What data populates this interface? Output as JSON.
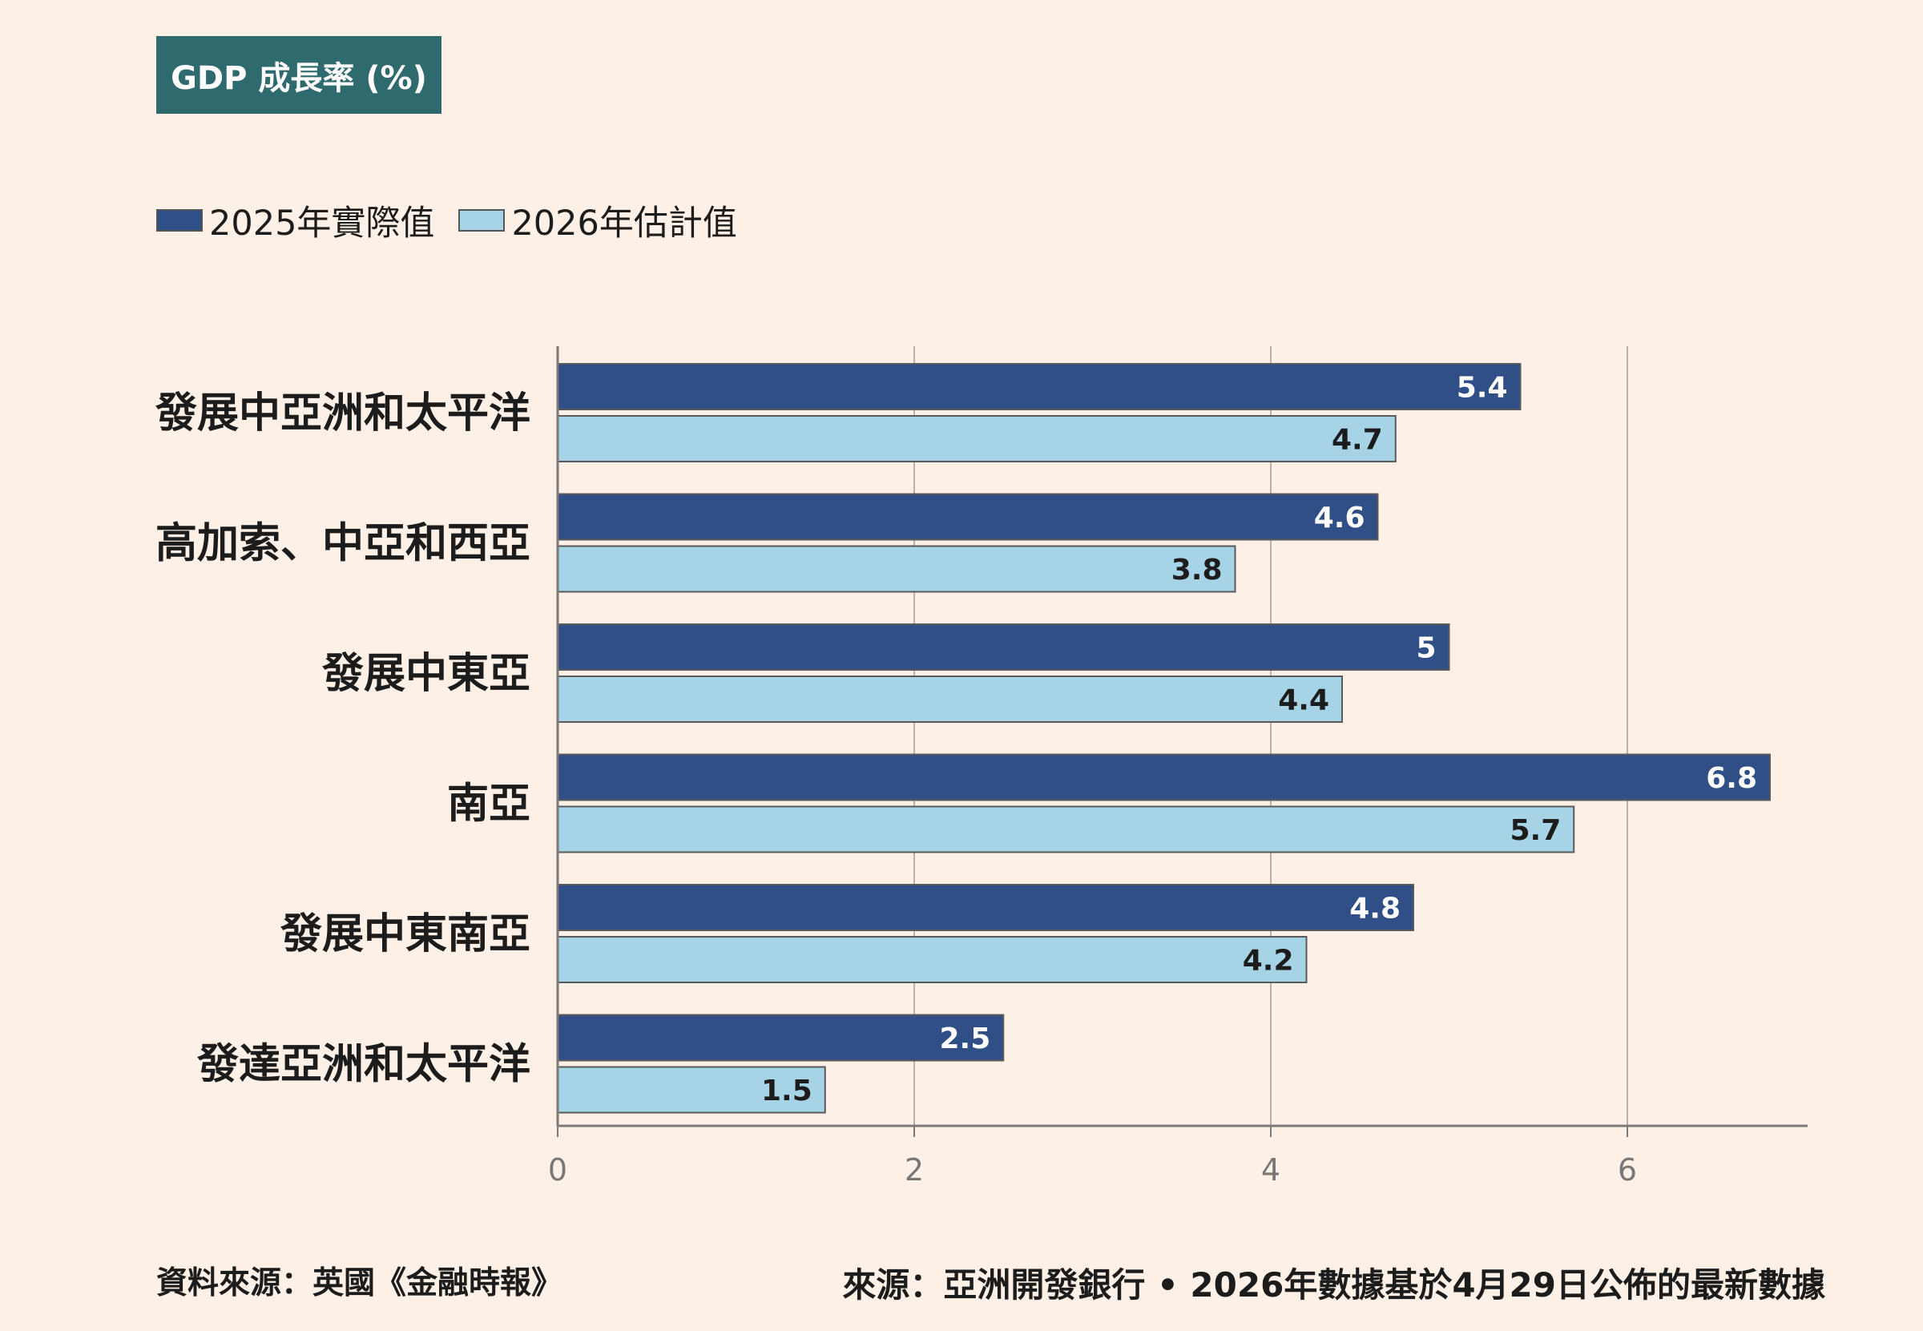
{
  "title": "GDP 成長率 (%)",
  "legend": {
    "series1": "2025年實際值",
    "series2": "2026年估計值"
  },
  "colors": {
    "series1": "#2f4f86",
    "series2": "#a6d3e6",
    "title_bg": "#2f6b6e",
    "background": "#fdf0e6"
  },
  "footer": {
    "left": "資料來源：英國《金融時報》",
    "right": "來源：亞洲開發銀行 • 2026年數據基於4月29日公佈的最新數據"
  },
  "chart_data": {
    "type": "bar",
    "orientation": "horizontal",
    "categories": [
      "發展中亞洲和太平洋",
      "高加索、中亞和西亞",
      "發展中東亞",
      "南亞",
      "發展中東南亞",
      "發達亞洲和太平洋"
    ],
    "series": [
      {
        "name": "2025年實際值",
        "values": [
          5.4,
          4.6,
          5,
          6.8,
          4.8,
          2.5
        ]
      },
      {
        "name": "2026年估計值",
        "values": [
          4.7,
          3.8,
          4.4,
          5.7,
          4.2,
          1.5
        ]
      }
    ],
    "xlim": [
      0,
      7
    ],
    "xticks": [
      0,
      2,
      4,
      6
    ],
    "grid": true,
    "legend_position": "top-left"
  }
}
